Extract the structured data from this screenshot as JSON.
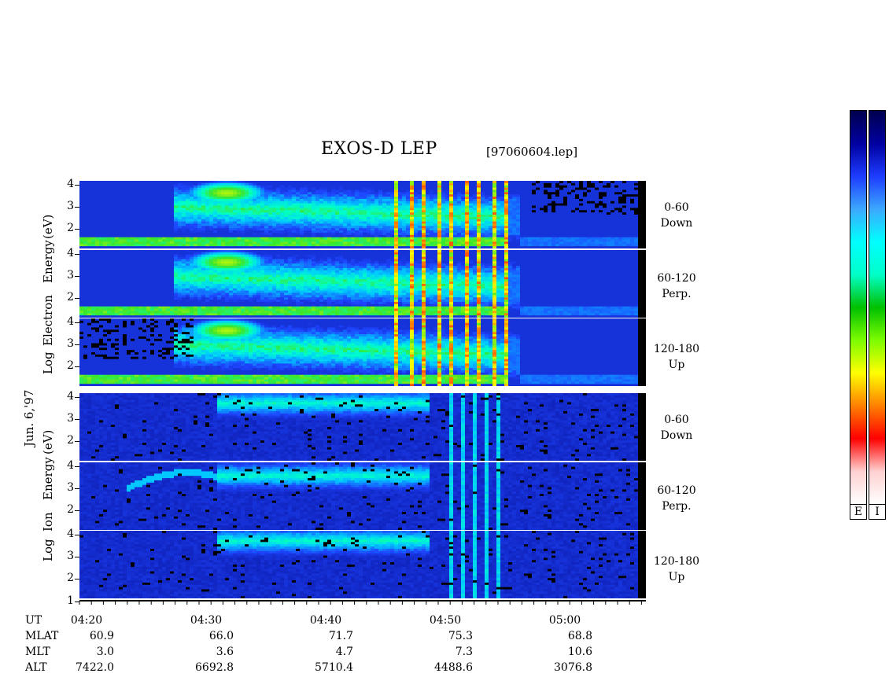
{
  "title": "EXOS-D LEP",
  "file": "[97060604.lep]",
  "date_label": "Jun. 6,'97",
  "electron_ylabel": [
    "Log",
    "Electron",
    "Energy",
    "(eV)"
  ],
  "ion_ylabel": [
    "Log",
    "Ion",
    "Energy",
    "(eV)"
  ],
  "y_ticks": [
    "4",
    "3",
    "2"
  ],
  "y_ticks_bottom": [
    "4",
    "3",
    "2",
    "1"
  ],
  "panel_labels": [
    {
      "angle": "0-60",
      "dir": "Down"
    },
    {
      "angle": "60-120",
      "dir": "Perp."
    },
    {
      "angle": "120-180",
      "dir": "Up"
    },
    {
      "angle": "0-60",
      "dir": "Down"
    },
    {
      "angle": "60-120",
      "dir": "Perp."
    },
    {
      "angle": "120-180",
      "dir": "Up"
    }
  ],
  "colorbar_labels": [
    "E",
    "I"
  ],
  "colors": {
    "bg_low": "#0a1aa8",
    "colorbar": [
      "#ffffff",
      "#ffd0d0",
      "#ff0000",
      "#ff8000",
      "#ffff00",
      "#7cfc00",
      "#00c000",
      "#00ffc8",
      "#00ffff",
      "#3ca8ff",
      "#1e3cff",
      "#0000a0",
      "#000050"
    ]
  },
  "chart_data": {
    "type": "heatmap",
    "title": "EXOS-D LEP",
    "x_axis": {
      "ticks": [
        "04:20",
        "04:30",
        "04:40",
        "04:50",
        "05:00"
      ],
      "rows": [
        {
          "name": "UT",
          "values": [
            "04:20",
            "04:30",
            "04:40",
            "04:50",
            "05:00"
          ]
        },
        {
          "name": "MLAT",
          "values": [
            "60.9",
            "66.0",
            "71.7",
            "75.3",
            "68.8"
          ]
        },
        {
          "name": "MLT",
          "values": [
            "3.0",
            "3.6",
            "4.7",
            "7.3",
            "10.6"
          ]
        },
        {
          "name": "ALT",
          "values": [
            "7422.0",
            "6692.8",
            "5710.4",
            "4488.6",
            "3076.8"
          ]
        }
      ]
    },
    "y_axis": {
      "label": "Log Energy (eV)",
      "range": [
        1,
        4
      ]
    },
    "panels": [
      {
        "species": "Electron",
        "pitch_angle": "0-60",
        "direction": "Down"
      },
      {
        "species": "Electron",
        "pitch_angle": "60-120",
        "direction": "Perp."
      },
      {
        "species": "Electron",
        "pitch_angle": "120-180",
        "direction": "Up"
      },
      {
        "species": "Ion",
        "pitch_angle": "0-60",
        "direction": "Down"
      },
      {
        "species": "Ion",
        "pitch_angle": "60-120",
        "direction": "Perp."
      },
      {
        "species": "Ion",
        "pitch_angle": "120-180",
        "direction": "Up"
      }
    ]
  }
}
